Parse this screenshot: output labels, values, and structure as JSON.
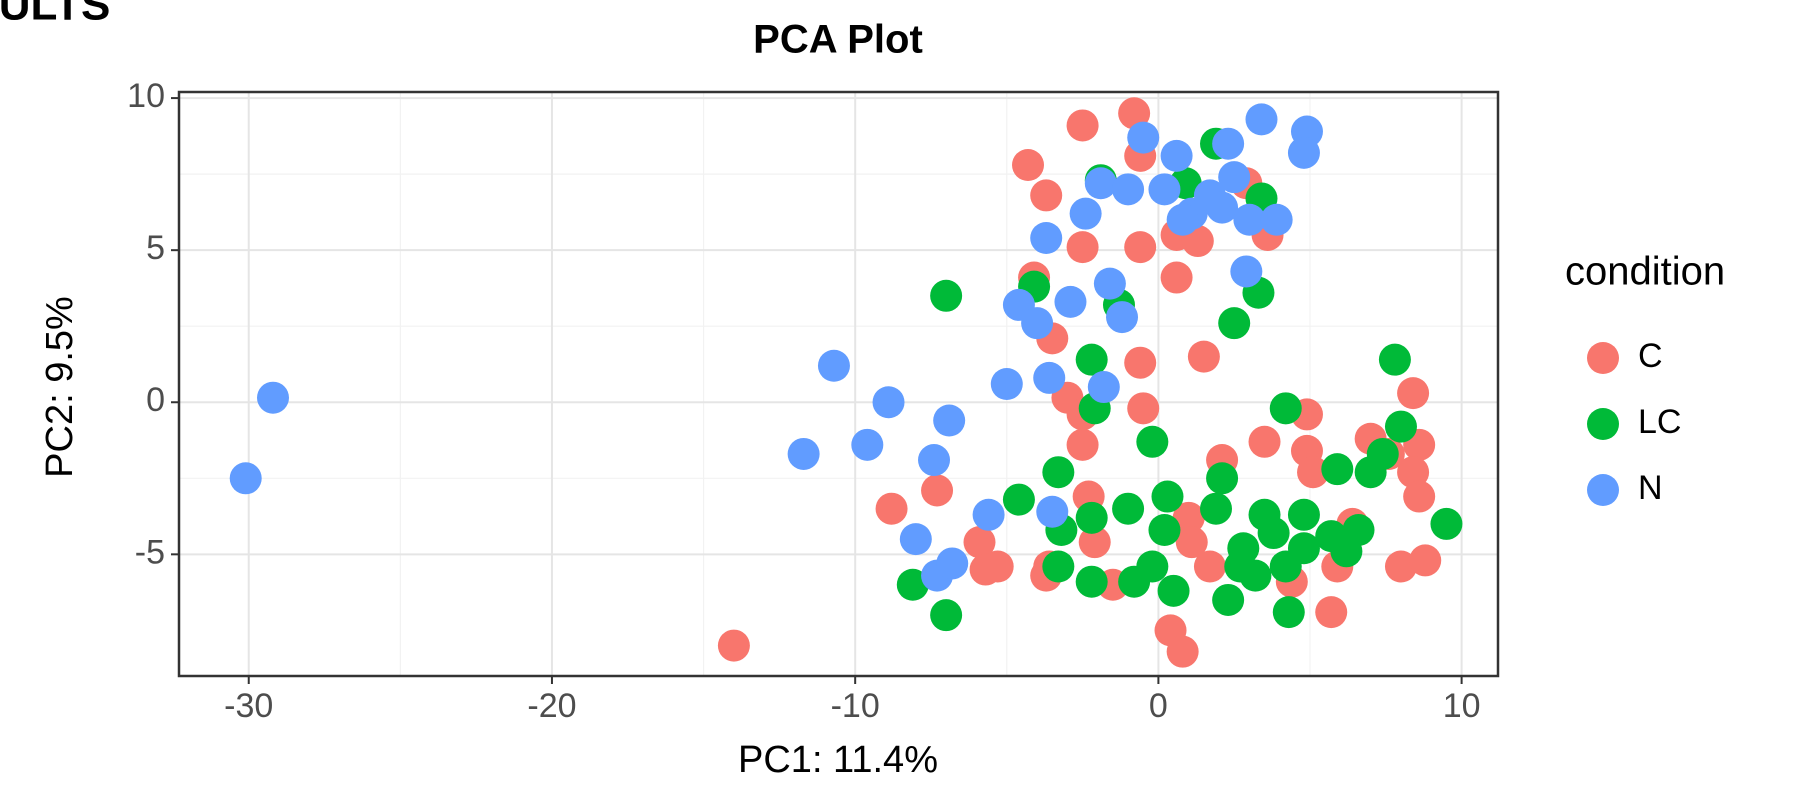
{
  "header_text": "ESULTS",
  "chart_data": {
    "type": "scatter",
    "title": "PCA Plot",
    "x_label": "PC1: 11.4%",
    "y_label": "PC2: 9.5%",
    "legend_title": "condition",
    "legend_position": "right",
    "grid": true,
    "xlim": [
      -32.3,
      11.2
    ],
    "ylim": [
      -9.0,
      10.2
    ],
    "xticks": [
      -30,
      -20,
      -10,
      0,
      10
    ],
    "yticks": [
      -5,
      0,
      5,
      10
    ],
    "series": [
      {
        "name": "C",
        "color": "#F8766D",
        "x": [
          -14.0,
          -8.8,
          -7.3,
          -5.9,
          -5.7,
          -5.3,
          -4.3,
          -3.7,
          -4.1,
          -3.5,
          -3.0,
          -2.5,
          -2.5,
          -2.5,
          -2.5,
          -0.8,
          -0.6,
          -0.6,
          0.6,
          -0.6,
          -0.5,
          -2.3,
          -2.1,
          -3.6,
          -3.7,
          -1.5,
          0.4,
          0.8,
          1.0,
          1.1,
          1.7,
          2.1,
          1.5,
          0.6,
          1.3,
          2.9,
          3.6,
          3.5,
          4.9,
          4.9,
          5.1,
          6.4,
          5.9,
          5.7,
          7.0,
          7.6,
          8.4,
          8.6,
          8.4,
          8.6,
          8.0,
          8.8,
          4.4
        ],
        "y": [
          -8.0,
          -3.5,
          -2.9,
          -4.6,
          -5.5,
          -5.4,
          7.8,
          6.8,
          4.1,
          2.1,
          0.15,
          -1.4,
          -0.4,
          9.1,
          5.1,
          9.5,
          8.1,
          5.1,
          4.1,
          1.3,
          -0.2,
          -3.1,
          -4.6,
          -5.4,
          -5.7,
          -6.0,
          -7.5,
          -8.2,
          -3.8,
          -4.6,
          -5.4,
          -1.9,
          1.5,
          5.5,
          5.3,
          7.2,
          5.5,
          -1.3,
          -0.4,
          -1.6,
          -2.3,
          -4.0,
          -5.4,
          -6.9,
          -1.2,
          -1.7,
          0.3,
          -1.4,
          -2.3,
          -3.1,
          -5.4,
          -5.2,
          -5.9
        ]
      },
      {
        "name": "LC",
        "color": "#00BA38",
        "x": [
          -7.0,
          -8.1,
          -7.0,
          -4.6,
          -4.1,
          -3.3,
          -3.2,
          -3.3,
          -2.2,
          -2.2,
          -2.2,
          -2.1,
          -1.9,
          -1.3,
          -1.0,
          -0.8,
          -0.2,
          -0.2,
          0.2,
          0.3,
          0.5,
          0.9,
          1.9,
          1.9,
          2.1,
          2.3,
          2.5,
          2.8,
          3.2,
          3.3,
          3.4,
          3.5,
          3.8,
          4.2,
          4.2,
          4.3,
          4.8,
          5.9,
          5.7,
          6.6,
          6.2,
          7.0,
          7.4,
          7.8,
          8.0,
          9.5,
          4.8,
          2.7
        ],
        "y": [
          3.5,
          -6.0,
          -7.0,
          -3.2,
          3.8,
          -2.3,
          -4.2,
          -5.4,
          -3.8,
          -5.9,
          1.4,
          -0.2,
          7.3,
          3.2,
          -3.5,
          -5.9,
          -1.3,
          -5.4,
          -4.2,
          -3.1,
          -6.2,
          7.2,
          8.5,
          -3.5,
          -2.5,
          -6.5,
          2.6,
          -4.8,
          -5.7,
          3.6,
          6.7,
          -3.7,
          -4.3,
          -5.4,
          -0.2,
          -6.9,
          -3.7,
          -2.2,
          -4.4,
          -4.2,
          -4.9,
          -2.3,
          -1.7,
          1.4,
          -0.8,
          -4.0,
          -4.8,
          -5.4
        ]
      },
      {
        "name": "N",
        "color": "#619CFF",
        "x": [
          -29.2,
          -30.1,
          -10.7,
          -8.9,
          -9.6,
          -11.7,
          -6.9,
          -7.4,
          -8.0,
          -7.3,
          -6.8,
          -5.6,
          -5.0,
          -3.6,
          -3.5,
          -4.6,
          -4.0,
          -3.7,
          -2.9,
          -1.6,
          -1.2,
          -1.8,
          -2.4,
          -1.9,
          -1.0,
          -0.5,
          0.6,
          0.2,
          1.1,
          1.7,
          2.3,
          2.1,
          3.0,
          3.4,
          3.9,
          4.9,
          4.8,
          2.9,
          0.8,
          2.5
        ],
        "y": [
          0.15,
          -2.5,
          1.2,
          0.0,
          -1.4,
          -1.7,
          -0.6,
          -1.9,
          -4.5,
          -5.7,
          -5.3,
          -3.7,
          0.6,
          0.8,
          -3.6,
          3.2,
          2.6,
          5.4,
          3.3,
          3.9,
          2.8,
          0.5,
          6.2,
          7.2,
          7.0,
          8.7,
          8.1,
          7.0,
          6.2,
          6.8,
          8.5,
          6.4,
          6.0,
          9.3,
          6.0,
          8.9,
          8.2,
          4.3,
          6.0,
          7.4
        ]
      }
    ]
  }
}
